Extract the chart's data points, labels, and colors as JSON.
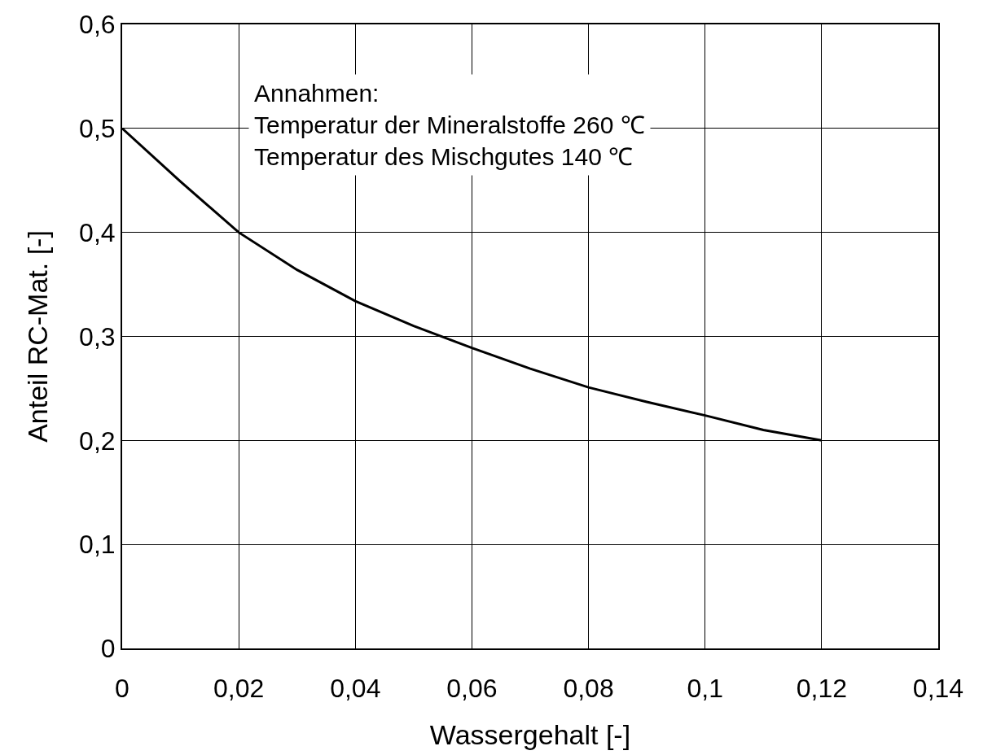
{
  "chart_data": {
    "type": "line",
    "xlabel": "Wassergehalt [-]",
    "ylabel": "Anteil RC-Mat. [-]",
    "x": [
      0,
      0.01,
      0.02,
      0.03,
      0.04,
      0.05,
      0.06,
      0.07,
      0.08,
      0.09,
      0.1,
      0.11,
      0.12
    ],
    "series": [
      {
        "color": "#000000",
        "values": [
          0.5,
          0.449,
          0.4,
          0.364,
          0.334,
          0.31,
          0.289,
          0.269,
          0.251,
          0.237,
          0.224,
          0.21,
          0.2
        ]
      }
    ],
    "xlim": [
      0,
      0.14
    ],
    "xticks": [
      0,
      {
        "value": 0.02,
        "label": "0,02"
      },
      {
        "value": 0.04,
        "label": "0,04"
      },
      {
        "value": 0.06,
        "label": "0,06"
      },
      {
        "value": 0.08,
        "label": "0,08"
      },
      {
        "value": 0.1,
        "label": "0,1"
      },
      {
        "value": 0.12,
        "label": "0,12"
      },
      {
        "value": 0.14,
        "label": "0,14"
      }
    ],
    "ylim": [
      0,
      0.6
    ],
    "yticks": [
      0,
      {
        "value": 0.1,
        "label": "0,1"
      },
      {
        "value": 0.2,
        "label": "0,2"
      },
      {
        "value": 0.3,
        "label": "0,3"
      },
      {
        "value": 0.4,
        "label": "0,4"
      },
      {
        "value": 0.5,
        "label": "0,5"
      },
      {
        "value": 0.6,
        "label": "0,6"
      }
    ],
    "grid": true,
    "marker": "none",
    "line_style": "solid",
    "annotations": [
      "Annahmen:\nTemperatur der Mineralstoffe 260 ℃\nTemperatur des Mischgutes 140 ℃"
    ]
  }
}
